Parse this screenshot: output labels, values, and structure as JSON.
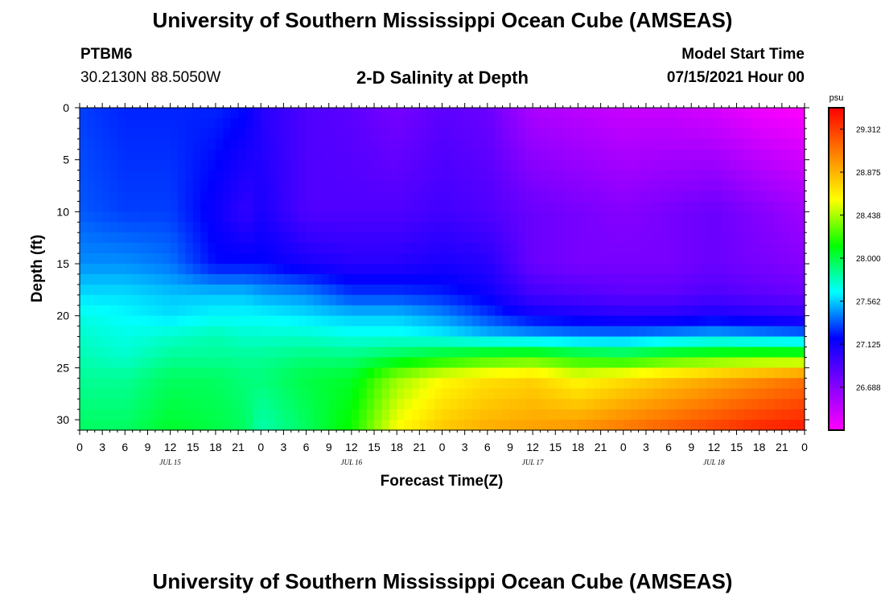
{
  "header": {
    "title": "University of Southern Mississippi Ocean Cube (AMSEAS)",
    "station_id": "PTBM6",
    "station_coords": "30.2130N  88.5050W",
    "plot_title": "2-D Salinity at Depth",
    "model_start_label": "Model Start Time",
    "model_start_value": "07/15/2021 Hour 00"
  },
  "footer": {
    "title": "University of Southern Mississippi Ocean Cube (AMSEAS)"
  },
  "chart_data": {
    "type": "heatmap",
    "title": "2-D Salinity at Depth",
    "xlabel": "Forecast Time(Z)",
    "ylabel": "Depth (ft)",
    "x_hours_range": [
      0,
      96
    ],
    "x_tick_labels": [
      "0",
      "3",
      "6",
      "9",
      "12",
      "15",
      "18",
      "21",
      "0",
      "3",
      "6",
      "9",
      "12",
      "15",
      "18",
      "21",
      "0",
      "3",
      "6",
      "9",
      "12",
      "15",
      "18",
      "21",
      "0",
      "3",
      "6",
      "9",
      "12",
      "15",
      "18",
      "21",
      "0"
    ],
    "date_labels": [
      "JUL 15",
      "JUL 16",
      "JUL 17",
      "JUL 18"
    ],
    "ylim": [
      0,
      31
    ],
    "y_tick_labels": [
      "0",
      "5",
      "10",
      "15",
      "20",
      "25",
      "30"
    ],
    "y_reversed": true,
    "colorbar": {
      "unit": "psu",
      "tick_labels": [
        "29.312",
        "28.875",
        "28.438",
        "28.000",
        "27.562",
        "27.125",
        "26.688"
      ],
      "range": [
        26.25,
        29.53
      ],
      "colors": [
        "#ff00ff",
        "#8000ff",
        "#0000ff",
        "#00ffff",
        "#00ff00",
        "#ffff00",
        "#ff8000",
        "#ff0000"
      ]
    },
    "salinity_grid": {
      "hours": [
        0,
        6,
        12,
        18,
        22,
        24,
        30,
        36,
        42,
        48,
        54,
        60,
        66,
        72,
        78,
        84,
        90,
        96
      ],
      "depths": [
        0,
        10,
        15,
        18,
        20,
        22,
        24,
        26,
        31
      ],
      "values": [
        [
          27.3,
          27.25,
          27.25,
          27.25,
          27.2,
          27.05,
          26.9,
          26.85,
          26.75,
          26.85,
          26.8,
          26.55,
          26.5,
          26.45,
          26.45,
          26.4,
          26.3,
          26.25
        ],
        [
          27.35,
          27.3,
          27.3,
          27.15,
          27.0,
          27.1,
          26.9,
          26.9,
          26.9,
          26.95,
          26.9,
          26.8,
          26.75,
          26.7,
          26.75,
          26.8,
          26.7,
          26.6
        ],
        [
          27.45,
          27.45,
          27.4,
          27.2,
          27.2,
          27.2,
          27.1,
          27.05,
          27.05,
          27.1,
          27.05,
          26.8,
          26.75,
          26.75,
          26.75,
          26.8,
          26.75,
          26.7
        ],
        [
          27.6,
          27.6,
          27.55,
          27.55,
          27.55,
          27.5,
          27.45,
          27.3,
          27.3,
          27.25,
          27.15,
          26.95,
          26.9,
          26.85,
          26.85,
          26.9,
          26.85,
          26.8
        ],
        [
          27.7,
          27.65,
          27.6,
          27.65,
          27.65,
          27.65,
          27.6,
          27.55,
          27.55,
          27.45,
          27.3,
          27.15,
          27.1,
          27.05,
          27.05,
          27.1,
          27.05,
          27.0
        ],
        [
          27.75,
          27.7,
          27.75,
          27.8,
          27.75,
          27.75,
          27.75,
          27.7,
          27.7,
          27.65,
          27.55,
          27.5,
          27.45,
          27.45,
          27.5,
          27.55,
          27.5,
          27.45
        ],
        [
          27.8,
          27.75,
          27.85,
          27.85,
          27.85,
          27.85,
          27.9,
          27.9,
          28.0,
          28.1,
          28.2,
          28.25,
          28.15,
          28.1,
          28.2,
          28.25,
          28.3,
          28.3
        ],
        [
          27.85,
          27.85,
          27.95,
          27.95,
          27.9,
          27.9,
          28.0,
          28.05,
          28.4,
          28.6,
          28.7,
          28.75,
          28.6,
          28.7,
          28.8,
          28.9,
          29.0,
          29.1
        ],
        [
          27.95,
          27.95,
          28.05,
          28.0,
          27.95,
          27.8,
          27.95,
          28.15,
          28.6,
          28.8,
          28.9,
          28.95,
          29.0,
          29.1,
          29.2,
          29.3,
          29.4,
          29.45
        ]
      ]
    },
    "grid": false
  }
}
